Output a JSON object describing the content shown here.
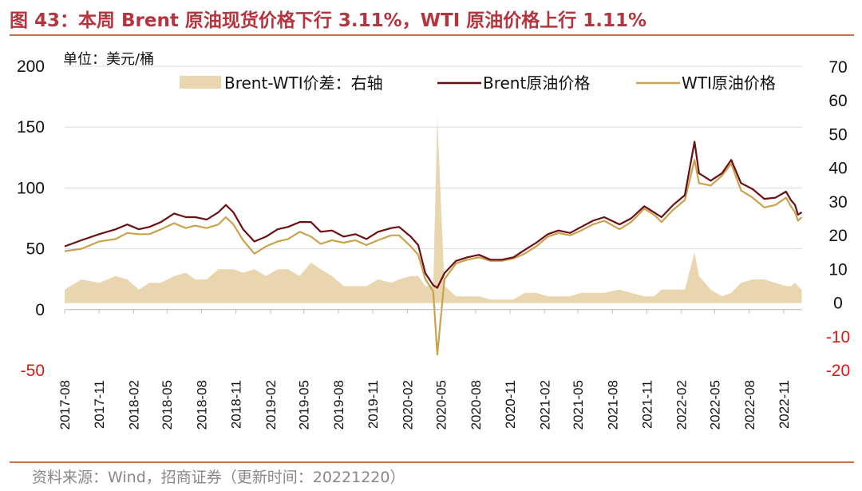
{
  "title": "图 43：本周 Brent 原油现货价格下行 3.11%，WTI 原油价格上行 1.11%",
  "source": "资料来源：Wind，招商证券（更新时间：20221220）",
  "chart_data": {
    "type": "line",
    "unit_label": "单位：美元/桶",
    "x_tick_labels": [
      "2017-08",
      "2017-11",
      "2018-02",
      "2018-05",
      "2018-08",
      "2018-11",
      "2019-02",
      "2019-05",
      "2019-08",
      "2019-11",
      "2020-02",
      "2020-05",
      "2020-08",
      "2020-11",
      "2021-02",
      "2021-05",
      "2021-08",
      "2021-11",
      "2022-02",
      "2022-05",
      "2022-08",
      "2022-11"
    ],
    "left_axis": {
      "min": -50,
      "max": 200,
      "ticks": [
        "-50",
        "0",
        "50",
        "100",
        "150",
        "200"
      ]
    },
    "right_axis": {
      "min": -20,
      "max": 70,
      "ticks": [
        "-20",
        "-10",
        "0",
        "10",
        "20",
        "30",
        "40",
        "50",
        "60",
        "70"
      ]
    },
    "grid": "horizontal",
    "legend_position": "top",
    "colors": {
      "brent": "#6b0f12",
      "wti": "#c9a24c",
      "spread": "#e9d5ae",
      "negative_tick": "#e01515"
    },
    "series": [
      {
        "name": "Brent原油价格",
        "axis": "left",
        "kind": "line",
        "x": [
          "2017-08-01",
          "2017-09-15",
          "2017-11-01",
          "2017-12-15",
          "2018-01-15",
          "2018-02-15",
          "2018-03-15",
          "2018-04-15",
          "2018-05-20",
          "2018-06-20",
          "2018-07-15",
          "2018-08-15",
          "2018-09-15",
          "2018-10-05",
          "2018-10-25",
          "2018-11-20",
          "2018-12-20",
          "2019-01-20",
          "2019-02-20",
          "2019-03-20",
          "2019-04-20",
          "2019-05-20",
          "2019-06-15",
          "2019-07-15",
          "2019-08-15",
          "2019-09-15",
          "2019-10-15",
          "2019-11-15",
          "2019-12-20",
          "2020-01-10",
          "2020-02-10",
          "2020-03-01",
          "2020-03-20",
          "2020-04-10",
          "2020-04-21",
          "2020-05-10",
          "2020-06-10",
          "2020-07-10",
          "2020-08-10",
          "2020-09-10",
          "2020-10-10",
          "2020-11-10",
          "2020-12-10",
          "2021-01-10",
          "2021-02-10",
          "2021-03-10",
          "2021-04-10",
          "2021-05-10",
          "2021-06-10",
          "2021-07-10",
          "2021-08-20",
          "2021-09-20",
          "2021-10-25",
          "2021-11-20",
          "2021-12-10",
          "2022-01-10",
          "2022-02-10",
          "2022-03-08",
          "2022-03-20",
          "2022-04-20",
          "2022-05-20",
          "2022-06-14",
          "2022-07-10",
          "2022-08-10",
          "2022-09-10",
          "2022-10-10",
          "2022-11-07",
          "2022-11-20",
          "2022-12-01",
          "2022-12-09",
          "2022-12-19"
        ],
        "values": [
          52,
          57,
          62,
          66,
          70,
          66,
          68,
          72,
          79,
          76,
          76,
          74,
          80,
          86,
          80,
          66,
          56,
          60,
          66,
          68,
          72,
          72,
          64,
          65,
          60,
          62,
          58,
          64,
          67,
          68,
          60,
          53,
          30,
          20,
          18,
          30,
          40,
          43,
          45,
          41,
          41,
          43,
          49,
          55,
          62,
          65,
          63,
          68,
          73,
          76,
          70,
          75,
          85,
          80,
          76,
          86,
          94,
          138,
          112,
          106,
          112,
          123,
          104,
          99,
          91,
          92,
          97,
          90,
          86,
          78,
          80
        ]
      },
      {
        "name": "WTI原油价格",
        "axis": "left",
        "kind": "line",
        "x": [
          "2017-08-01",
          "2017-09-15",
          "2017-11-01",
          "2017-12-15",
          "2018-01-15",
          "2018-02-15",
          "2018-03-15",
          "2018-04-15",
          "2018-05-20",
          "2018-06-20",
          "2018-07-15",
          "2018-08-15",
          "2018-09-15",
          "2018-10-05",
          "2018-10-25",
          "2018-11-20",
          "2018-12-20",
          "2019-01-20",
          "2019-02-20",
          "2019-03-20",
          "2019-04-20",
          "2019-05-20",
          "2019-06-15",
          "2019-07-15",
          "2019-08-15",
          "2019-09-15",
          "2019-10-15",
          "2019-11-15",
          "2019-12-20",
          "2020-01-10",
          "2020-02-10",
          "2020-03-01",
          "2020-03-20",
          "2020-04-10",
          "2020-04-21",
          "2020-05-10",
          "2020-06-10",
          "2020-07-10",
          "2020-08-10",
          "2020-09-10",
          "2020-10-10",
          "2020-11-10",
          "2020-12-10",
          "2021-01-10",
          "2021-02-10",
          "2021-03-10",
          "2021-04-10",
          "2021-05-10",
          "2021-06-10",
          "2021-07-10",
          "2021-08-20",
          "2021-09-20",
          "2021-10-25",
          "2021-11-20",
          "2021-12-10",
          "2022-01-10",
          "2022-02-10",
          "2022-03-08",
          "2022-03-20",
          "2022-04-20",
          "2022-05-20",
          "2022-06-14",
          "2022-07-10",
          "2022-08-10",
          "2022-09-10",
          "2022-10-10",
          "2022-11-07",
          "2022-11-20",
          "2022-12-01",
          "2022-12-09",
          "2022-12-19"
        ],
        "values": [
          48,
          50,
          56,
          58,
          63,
          62,
          62,
          66,
          71,
          67,
          69,
          67,
          70,
          76,
          70,
          57,
          46,
          52,
          56,
          58,
          64,
          60,
          54,
          57,
          55,
          57,
          53,
          57,
          61,
          61,
          52,
          45,
          25,
          15,
          -37,
          25,
          38,
          41,
          43,
          40,
          40,
          42,
          46,
          52,
          60,
          63,
          61,
          65,
          70,
          73,
          66,
          72,
          83,
          78,
          72,
          82,
          90,
          123,
          104,
          102,
          110,
          120,
          98,
          92,
          84,
          86,
          92,
          85,
          80,
          73,
          76
        ]
      },
      {
        "name": "Brent-WTI价差：右轴",
        "axis": "right",
        "kind": "area",
        "x": [
          "2017-08-01",
          "2017-09-15",
          "2017-11-01",
          "2017-12-15",
          "2018-01-15",
          "2018-02-15",
          "2018-03-15",
          "2018-04-15",
          "2018-05-20",
          "2018-06-20",
          "2018-07-15",
          "2018-08-15",
          "2018-09-15",
          "2018-10-05",
          "2018-10-25",
          "2018-11-20",
          "2018-12-20",
          "2019-01-20",
          "2019-02-20",
          "2019-03-20",
          "2019-04-20",
          "2019-05-20",
          "2019-06-15",
          "2019-07-15",
          "2019-08-15",
          "2019-09-15",
          "2019-10-15",
          "2019-11-15",
          "2019-12-20",
          "2020-01-10",
          "2020-02-10",
          "2020-03-01",
          "2020-03-20",
          "2020-04-10",
          "2020-04-21",
          "2020-05-10",
          "2020-06-10",
          "2020-07-10",
          "2020-08-10",
          "2020-09-10",
          "2020-10-10",
          "2020-11-10",
          "2020-12-10",
          "2021-01-10",
          "2021-02-10",
          "2021-03-10",
          "2021-04-10",
          "2021-05-10",
          "2021-06-10",
          "2021-07-10",
          "2021-08-20",
          "2021-09-20",
          "2021-10-25",
          "2021-11-20",
          "2021-12-10",
          "2022-01-10",
          "2022-02-10",
          "2022-03-08",
          "2022-03-20",
          "2022-04-20",
          "2022-05-20",
          "2022-06-14",
          "2022-07-10",
          "2022-08-10",
          "2022-09-10",
          "2022-10-10",
          "2022-11-07",
          "2022-11-20",
          "2022-12-01",
          "2022-12-09",
          "2022-12-19"
        ],
        "values": [
          4,
          7,
          6,
          8,
          7,
          4,
          6,
          6,
          8,
          9,
          7,
          7,
          10,
          10,
          10,
          9,
          10,
          8,
          10,
          10,
          8,
          12,
          10,
          8,
          5,
          5,
          5,
          7,
          6,
          7,
          8,
          8,
          5,
          5,
          55,
          5,
          2,
          2,
          2,
          1,
          1,
          1,
          3,
          3,
          2,
          2,
          2,
          3,
          3,
          3,
          4,
          3,
          2,
          2,
          4,
          4,
          4,
          15,
          8,
          4,
          2,
          3,
          6,
          7,
          7,
          6,
          5,
          5,
          6,
          5,
          4
        ]
      }
    ]
  }
}
